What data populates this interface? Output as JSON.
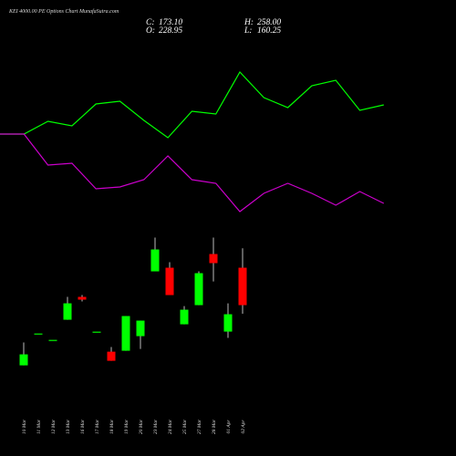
{
  "chart_data": [
    {
      "type": "candlestick",
      "title": "KEI 4000.00 PE Options Chart MunafaSutra.com",
      "summary": [
        {
          "label": "C:",
          "value": 173.1,
          "value_label": "173.10"
        },
        {
          "label": "O:",
          "value": 228.95,
          "value_label": "228.95"
        },
        {
          "label": "H:",
          "value": 258,
          "value_label": "258.00"
        },
        {
          "label": "L:",
          "value": 160.25,
          "value_label": "160.25"
        }
      ],
      "categories": [
        "10 Mar",
        "11 Mar",
        "12 Mar",
        "13 Mar",
        "16 Mar",
        "17 Mar",
        "18 Mar",
        "19 Mar",
        "20 Mar",
        "23 Mar",
        "24 Mar",
        "25 Mar",
        "27 Mar",
        "28 Mar",
        "01 Apr",
        "02 Apr"
      ],
      "open": [
        83.2,
        129.5,
        120.0,
        151.3,
        185.4,
        132.3,
        103.6,
        105.0,
        126.8,
        223.5,
        228.95,
        144.5,
        173.1,
        249.4,
        133.6,
        228.95
      ],
      "close": [
        99.6,
        129.5,
        120.0,
        175.8,
        181.3,
        132.3,
        90.0,
        156.8,
        150.0,
        256.2,
        188.1,
        166.3,
        220.8,
        235.8,
        159.5,
        173.1
      ],
      "high": [
        117.3,
        129.5,
        120.0,
        185.4,
        188.1,
        132.3,
        110.5,
        156.8,
        150.0,
        273.9,
        237.1,
        171.7,
        223.5,
        273.9,
        175.8,
        258
      ],
      "low": [
        83.2,
        129.5,
        120.0,
        151.3,
        178.6,
        132.3,
        90.0,
        105.0,
        107.7,
        223.5,
        188.1,
        144.5,
        173.1,
        208.5,
        124.1,
        160.25
      ],
      "up_color": "#00ff00",
      "down_color": "#ff0000",
      "ylim": [
        70,
        290
      ]
    },
    {
      "type": "line",
      "series": [
        {
          "color": "#00ff00",
          "values": [
            353,
            353,
            367,
            362,
            386,
            389,
            368,
            349,
            378,
            375,
            421,
            393,
            382,
            406,
            412,
            379,
            385
          ]
        },
        {
          "color": "#cc00cc",
          "values": [
            353,
            353,
            319,
            321,
            293,
            295,
            303,
            329,
            303,
            299,
            268,
            288,
            299,
            288,
            275,
            290,
            277
          ]
        }
      ],
      "ylim": [
        0,
        500
      ]
    }
  ]
}
